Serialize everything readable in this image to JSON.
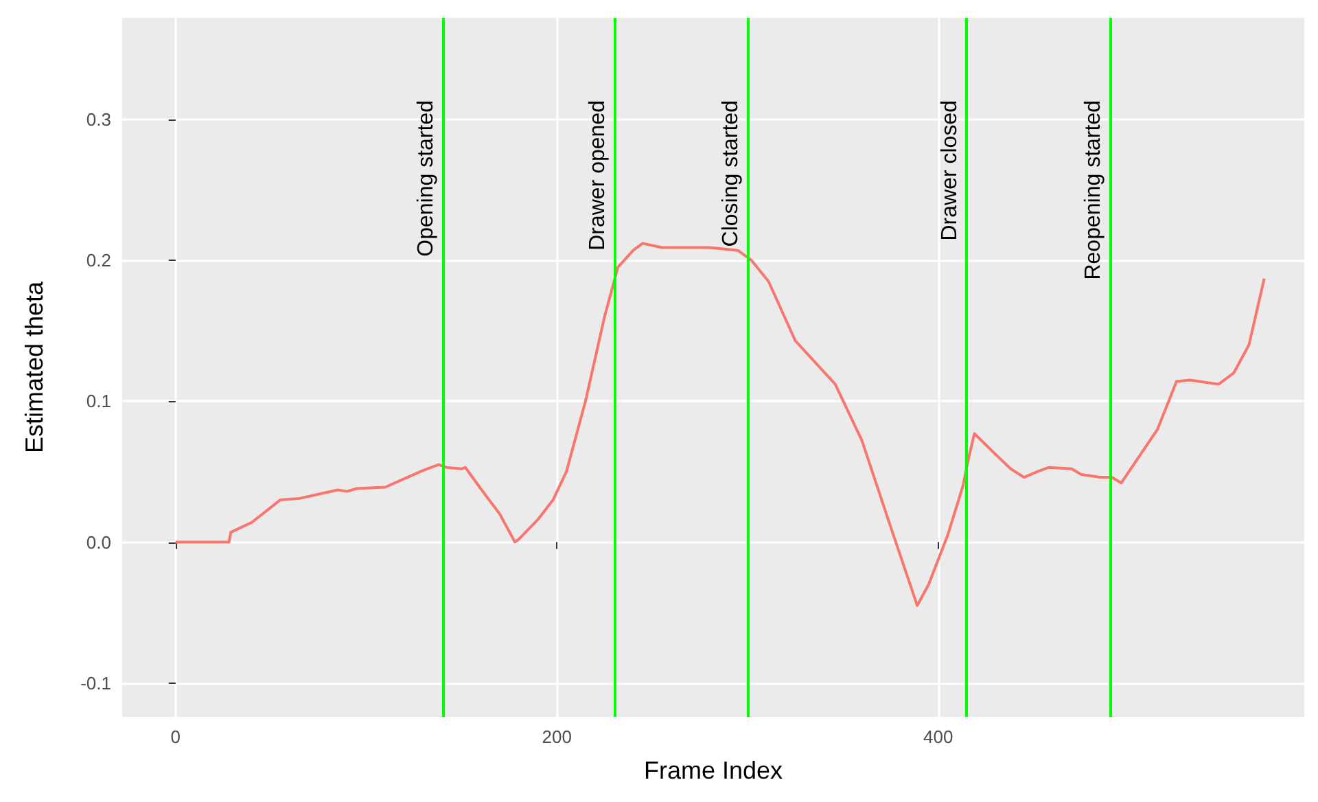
{
  "chart_data": {
    "type": "line",
    "xlabel": "Frame Index",
    "ylabel": "Estimated theta",
    "xlim": [
      -28,
      592
    ],
    "ylim": [
      -0.124,
      0.372
    ],
    "xticks": [
      0,
      200,
      400
    ],
    "yticks": [
      -0.1,
      {
        "value": 0,
        "label": "0.0"
      },
      0.1,
      0.2,
      0.3
    ],
    "grid": true,
    "marker": "none",
    "line_style": "solid",
    "series": [
      {
        "color": "#f8766d",
        "x": [
          0,
          28,
          29,
          40,
          55,
          65,
          75,
          85,
          90,
          95,
          110,
          120,
          130,
          138,
          142,
          150,
          152,
          160,
          170,
          178,
          180,
          190,
          198,
          205,
          215,
          225,
          232,
          240,
          245,
          255,
          265,
          280,
          295,
          302,
          311,
          325,
          346,
          360,
          375,
          389,
          395,
          405,
          413,
          416,
          419,
          428,
          438,
          445,
          452,
          458,
          470,
          475,
          485,
          491,
          496,
          505,
          515,
          525,
          532,
          547,
          555,
          563,
          571
        ],
        "values": [
          0,
          0,
          0.007,
          0.014,
          0.03,
          0.031,
          0.034,
          0.037,
          0.036,
          0.038,
          0.039,
          0.045,
          0.051,
          0.055,
          0.053,
          0.052,
          0.053,
          0.038,
          0.02,
          0,
          0.002,
          0.016,
          0.03,
          0.05,
          0.1,
          0.16,
          0.195,
          0.207,
          0.212,
          0.209,
          0.209,
          0.209,
          0.207,
          0.2,
          0.185,
          0.143,
          0.112,
          0.072,
          0.011,
          -0.045,
          -0.03,
          0.005,
          0.04,
          0.06,
          0.077,
          0.065,
          0.052,
          0.046,
          0.05,
          0.053,
          0.052,
          0.048,
          0.046,
          0.046,
          0.042,
          0.06,
          0.08,
          0.114,
          0.115,
          0.112,
          0.12,
          0.14,
          0.187
        ]
      }
    ],
    "ref_lines": [
      {
        "axis": "x",
        "value": 140,
        "label": "Opening started",
        "color": "#00ff00"
      },
      {
        "axis": "x",
        "value": 230,
        "label": "Drawer opened",
        "color": "#00ff00"
      },
      {
        "axis": "x",
        "value": 300,
        "label": "Closing started",
        "color": "#00ff00"
      },
      {
        "axis": "x",
        "value": 415,
        "label": "Drawer closed",
        "color": "#00ff00"
      },
      {
        "axis": "x",
        "value": 490,
        "label": "Reopening started",
        "color": "#00ff00"
      }
    ]
  }
}
